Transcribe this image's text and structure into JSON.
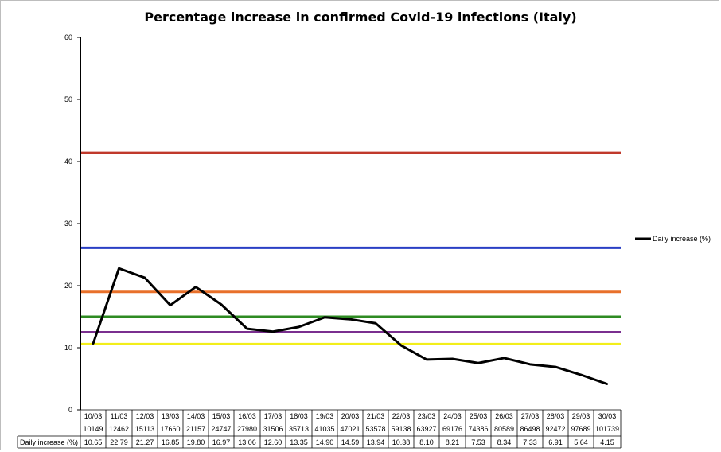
{
  "chart_data": {
    "type": "line",
    "title": "Percentage increase in confirmed Covid-19 infections (Italy)",
    "ylim": [
      0,
      60
    ],
    "y_ticks": [
      "0",
      "10",
      "20",
      "30",
      "40",
      "50",
      "60"
    ],
    "categories": [
      "10/03",
      "11/03",
      "12/03",
      "13/03",
      "14/03",
      "15/03",
      "16/03",
      "17/03",
      "18/03",
      "19/03",
      "20/03",
      "21/03",
      "22/03",
      "23/03",
      "24/03",
      "25/03",
      "26/03",
      "27/03",
      "28/03",
      "29/03",
      "30/03"
    ],
    "cumulative_cases": [
      "10149",
      "12462",
      "15113",
      "17660",
      "21157",
      "24747",
      "27980",
      "31506",
      "35713",
      "41035",
      "47021",
      "53578",
      "59138",
      "63927",
      "69176",
      "74386",
      "80589",
      "86498",
      "92472",
      "97689",
      "101739"
    ],
    "series": [
      {
        "name": "Daily increase (%)",
        "color": "#000000",
        "values": [
          10.65,
          22.79,
          21.27,
          16.85,
          19.8,
          16.97,
          13.06,
          12.6,
          13.35,
          14.9,
          14.59,
          13.94,
          10.38,
          8.1,
          8.21,
          7.53,
          8.34,
          7.33,
          6.91,
          5.64,
          4.15
        ],
        "labels": [
          "10.65",
          "22.79",
          "21.27",
          "16.85",
          "19.80",
          "16.97",
          "13.06",
          "12.60",
          "13.35",
          "14.90",
          "14.59",
          "13.94",
          "10.38",
          "8.10",
          "8.21",
          "7.53",
          "8.34",
          "7.33",
          "6.91",
          "5.64",
          "4.15"
        ]
      }
    ],
    "reference_lines": [
      {
        "value": 41.4,
        "color": "#c0392b"
      },
      {
        "value": 26.1,
        "color": "#2a3fc4"
      },
      {
        "value": 19.0,
        "color": "#e8702a"
      },
      {
        "value": 15.0,
        "color": "#2e8b22"
      },
      {
        "value": 12.5,
        "color": "#7a2f8f"
      },
      {
        "value": 10.6,
        "color": "#f2ee1a"
      }
    ],
    "legend_position": "right",
    "grid": false
  }
}
